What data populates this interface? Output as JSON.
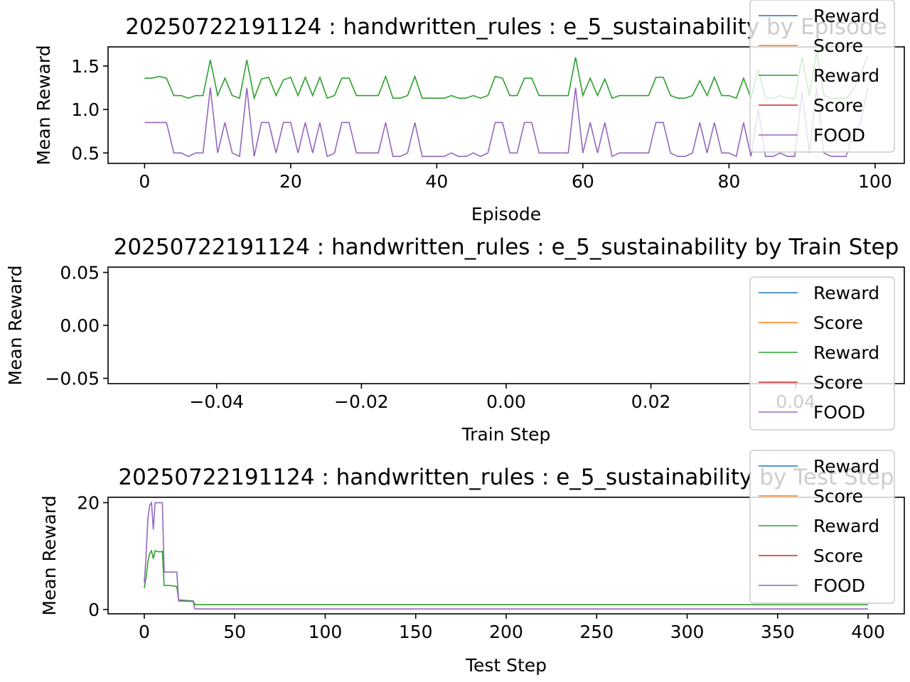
{
  "chart_data": [
    {
      "type": "line",
      "title": "20250722191124 : handwritten_rules : e_5_sustainability by Episode",
      "xlabel": "Episode",
      "ylabel": "Mean Reward",
      "xlim": [
        -5,
        104
      ],
      "ylim": [
        0.38,
        1.72
      ],
      "xticks": [
        0,
        20,
        40,
        60,
        80,
        100
      ],
      "xtick_labels": [
        "0",
        "20",
        "40",
        "60",
        "80",
        "100"
      ],
      "yticks": [
        0.5,
        1.0,
        1.5
      ],
      "ytick_labels": [
        "0.5",
        "1.0",
        "1.5"
      ],
      "legend_position": "top-right",
      "legend": [
        "Reward",
        "Score",
        "Reward",
        "Score",
        "FOOD"
      ],
      "x_start": 0,
      "x_step": 1,
      "series": [
        {
          "name": "Reward",
          "color": "#1f77b4",
          "hidden": true,
          "values": []
        },
        {
          "name": "Score",
          "color": "#ff7f0e",
          "hidden": true,
          "values": []
        },
        {
          "name": "Reward",
          "color": "#2ca02c",
          "values": [
            1.36,
            1.36,
            1.38,
            1.36,
            1.16,
            1.16,
            1.13,
            1.16,
            1.16,
            1.57,
            1.16,
            1.36,
            1.16,
            1.13,
            1.57,
            1.13,
            1.35,
            1.37,
            1.16,
            1.34,
            1.37,
            1.16,
            1.37,
            1.16,
            1.37,
            1.13,
            1.16,
            1.36,
            1.36,
            1.16,
            1.16,
            1.16,
            1.16,
            1.38,
            1.13,
            1.13,
            1.16,
            1.38,
            1.13,
            1.13,
            1.13,
            1.13,
            1.16,
            1.13,
            1.13,
            1.16,
            1.13,
            1.16,
            1.38,
            1.36,
            1.16,
            1.16,
            1.36,
            1.36,
            1.16,
            1.16,
            1.16,
            1.16,
            1.16,
            1.6,
            1.16,
            1.36,
            1.16,
            1.35,
            1.13,
            1.16,
            1.16,
            1.16,
            1.16,
            1.16,
            1.37,
            1.37,
            1.16,
            1.13,
            1.13,
            1.16,
            1.33,
            1.16,
            1.37,
            1.16,
            1.16,
            1.13,
            1.36,
            1.13,
            1.46,
            1.13,
            1.13,
            1.16,
            1.13,
            1.13,
            1.6,
            1.16,
            1.67,
            1.16,
            1.13,
            1.13,
            1.13,
            1.22,
            1.4,
            1.62
          ]
        },
        {
          "name": "Score",
          "color": "#d62728",
          "hidden": true,
          "values": []
        },
        {
          "name": "FOOD",
          "color": "#9467bd",
          "values": [
            0.85,
            0.85,
            0.85,
            0.85,
            0.5,
            0.5,
            0.46,
            0.5,
            0.5,
            1.25,
            0.5,
            0.85,
            0.5,
            0.46,
            1.25,
            0.46,
            0.85,
            0.85,
            0.5,
            0.85,
            0.85,
            0.5,
            0.85,
            0.5,
            0.85,
            0.46,
            0.5,
            0.85,
            0.85,
            0.5,
            0.5,
            0.5,
            0.5,
            0.85,
            0.46,
            0.46,
            0.5,
            0.85,
            0.46,
            0.46,
            0.46,
            0.46,
            0.5,
            0.46,
            0.46,
            0.5,
            0.46,
            0.5,
            0.85,
            0.85,
            0.5,
            0.5,
            0.85,
            0.85,
            0.5,
            0.5,
            0.5,
            0.5,
            0.5,
            1.25,
            0.5,
            0.85,
            0.5,
            0.85,
            0.46,
            0.5,
            0.5,
            0.5,
            0.5,
            0.5,
            0.85,
            0.85,
            0.5,
            0.46,
            0.46,
            0.5,
            0.85,
            0.5,
            0.85,
            0.5,
            0.5,
            0.46,
            0.85,
            0.46,
            1.0,
            0.46,
            0.46,
            0.5,
            0.46,
            0.46,
            1.2,
            0.5,
            1.25,
            0.5,
            0.46,
            0.46,
            0.46,
            0.7,
            0.85,
            1.25
          ]
        }
      ]
    },
    {
      "type": "line",
      "title": "20250722191124 : handwritten_rules : e_5_sustainability by Train Step",
      "xlabel": "Train Step",
      "ylabel": "Mean Reward",
      "xlim": [
        -0.055,
        0.055
      ],
      "ylim": [
        -0.055,
        0.055
      ],
      "xticks": [
        -0.04,
        -0.02,
        0.0,
        0.02,
        0.04
      ],
      "xtick_labels": [
        "−0.04",
        "−0.02",
        "0.00",
        "0.02",
        "0.04"
      ],
      "yticks": [
        0.05,
        0.0,
        -0.05
      ],
      "ytick_labels": [
        "0.05",
        "0.00",
        "−0.05"
      ],
      "legend_position": "right",
      "legend": [
        "Reward",
        "Score",
        "Reward",
        "Score",
        "FOOD"
      ],
      "x_start": 0,
      "x_step": 1,
      "series": [
        {
          "name": "Reward",
          "color": "#1f77b4",
          "hidden": true,
          "values": []
        },
        {
          "name": "Score",
          "color": "#ff7f0e",
          "hidden": true,
          "values": []
        },
        {
          "name": "Reward",
          "color": "#2ca02c",
          "hidden": true,
          "values": []
        },
        {
          "name": "Score",
          "color": "#d62728",
          "hidden": true,
          "values": []
        },
        {
          "name": "FOOD",
          "color": "#9467bd",
          "hidden": true,
          "values": []
        }
      ]
    },
    {
      "type": "line",
      "title": "20250722191124 : handwritten_rules : e_5_sustainability by Test Step",
      "xlabel": "Test Step",
      "ylabel": "Mean Reward",
      "xlim": [
        -20,
        420
      ],
      "ylim": [
        -0.8,
        21
      ],
      "xticks": [
        0,
        50,
        100,
        150,
        200,
        250,
        300,
        350,
        400
      ],
      "xtick_labels": [
        "0",
        "50",
        "100",
        "150",
        "200",
        "250",
        "300",
        "350",
        "400"
      ],
      "yticks": [
        0,
        20
      ],
      "ytick_labels": [
        "0",
        "20"
      ],
      "legend_position": "top-right",
      "legend": [
        "Reward",
        "Score",
        "Reward",
        "Score",
        "FOOD"
      ],
      "series": [
        {
          "name": "Reward",
          "color": "#1f77b4",
          "hidden": true,
          "points": []
        },
        {
          "name": "Score",
          "color": "#ff7f0e",
          "hidden": true,
          "points": []
        },
        {
          "name": "Reward",
          "color": "#2ca02c",
          "points": [
            [
              0,
              4
            ],
            [
              1,
              6
            ],
            [
              2,
              9
            ],
            [
              3,
              10.5
            ],
            [
              4,
              11
            ],
            [
              5,
              9.5
            ],
            [
              6,
              11
            ],
            [
              8,
              10.8
            ],
            [
              9,
              10.8
            ],
            [
              10,
              10.9
            ],
            [
              11,
              4.5
            ],
            [
              13,
              4.5
            ],
            [
              14,
              4.5
            ],
            [
              18,
              4.3
            ],
            [
              19,
              1.8
            ],
            [
              27,
              1.6
            ],
            [
              28,
              0.9
            ],
            [
              400,
              0.9
            ]
          ]
        },
        {
          "name": "Score",
          "color": "#d62728",
          "hidden": true,
          "points": []
        },
        {
          "name": "FOOD",
          "color": "#9467bd",
          "points": [
            [
              0,
              5
            ],
            [
              1,
              10
            ],
            [
              2,
              17
            ],
            [
              3,
              19.5
            ],
            [
              4,
              20
            ],
            [
              5,
              15
            ],
            [
              6,
              20
            ],
            [
              8,
              20
            ],
            [
              9,
              20
            ],
            [
              10,
              20
            ],
            [
              11,
              7
            ],
            [
              18,
              7
            ],
            [
              19,
              1.6
            ],
            [
              27,
              1.5
            ],
            [
              28,
              0.1
            ],
            [
              400,
              0.1
            ]
          ]
        }
      ]
    }
  ]
}
